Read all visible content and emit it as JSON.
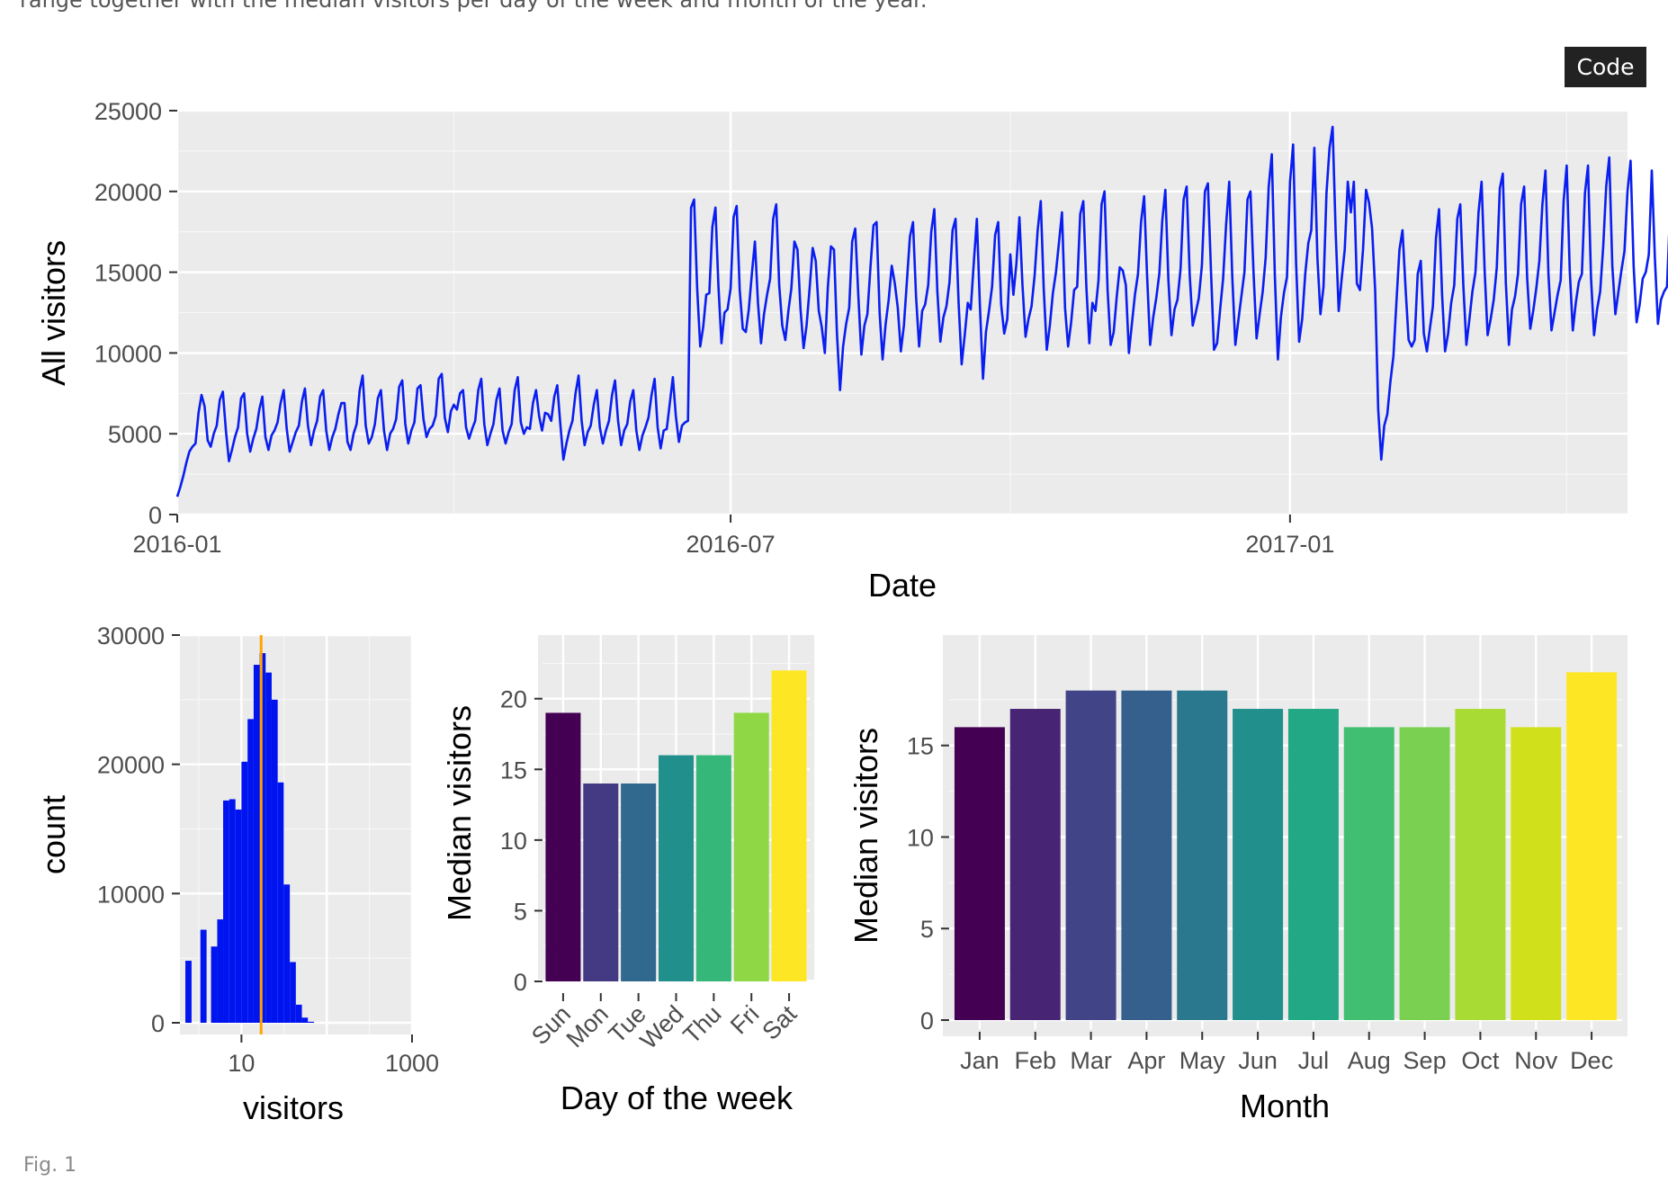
{
  "page": {
    "caption": "range together with the median visitors per day of the week and month of the year.",
    "code_button": "Code",
    "figure_label": "Fig. 1"
  },
  "chart_data": [
    {
      "type": "line",
      "xlabel": "Date",
      "ylabel": "All visitors",
      "x_ticks": [
        "2016-01",
        "2016-07",
        "2017-01"
      ],
      "y_ticks": [
        0,
        5000,
        10000,
        15000,
        20000,
        25000
      ],
      "ylim": [
        0,
        25000
      ],
      "xlim": [
        "2016-01-01",
        "2017-04-22"
      ],
      "color": "#0a1ef0",
      "grid": true,
      "series": [
        {
          "name": "",
          "x_start": "2016-01-01",
          "step": "1 day",
          "values": [
            1100,
            1700,
            2400,
            3200,
            3900,
            4200,
            4400,
            6300,
            7400,
            6700,
            4600,
            4200,
            5000,
            5500,
            7100,
            7600,
            5200,
            3300,
            4000,
            4800,
            5400,
            7200,
            7500,
            5000,
            3900,
            4700,
            5300,
            6500,
            7300,
            4800,
            4000,
            4900,
            5200,
            5700,
            6900,
            7700,
            5300,
            3900,
            4500,
            5100,
            5500,
            7000,
            7800,
            5500,
            4300,
            5200,
            5800,
            7300,
            7700,
            5200,
            4000,
            4800,
            5300,
            6200,
            6900,
            6900,
            4500,
            4000,
            5000,
            5600,
            7700,
            8600,
            5500,
            4400,
            4800,
            5600,
            7200,
            7700,
            5200,
            4000,
            5000,
            5300,
            5900,
            7900,
            8300,
            5600,
            4400,
            5200,
            5700,
            7800,
            8000,
            5900,
            4800,
            5300,
            5500,
            6100,
            8400,
            8700,
            6000,
            5100,
            6400,
            6800,
            6500,
            7500,
            7700,
            5400,
            4700,
            5300,
            5800,
            7700,
            8400,
            5600,
            4300,
            5000,
            5600,
            7100,
            7800,
            5200,
            4400,
            5100,
            5600,
            7700,
            8500,
            5700,
            5000,
            5400,
            5300,
            6900,
            7700,
            6100,
            5200,
            6300,
            6200,
            5800,
            7300,
            8000,
            5600,
            3400,
            4400,
            5200,
            5800,
            7500,
            8600,
            5800,
            4300,
            5100,
            5500,
            6800,
            7700,
            5400,
            4400,
            5200,
            5800,
            7400,
            8300,
            5800,
            4300,
            5200,
            5600,
            7000,
            7700,
            5200,
            4000,
            4900,
            5400,
            6000,
            7400,
            8400,
            5400,
            4100,
            5200,
            5300,
            6900,
            8500,
            6100,
            4500,
            5500,
            5700,
            5800,
            19000,
            19500,
            14000,
            10400,
            11600,
            13600,
            13700,
            17800,
            19000,
            14200,
            10600,
            12500,
            12700,
            14000,
            18400,
            19100,
            13900,
            11500,
            11300,
            12700,
            14900,
            16900,
            13100,
            10600,
            12400,
            13600,
            14600,
            18300,
            19200,
            14200,
            11700,
            10800,
            12600,
            14000,
            16900,
            16400,
            12700,
            10300,
            11700,
            14000,
            16500,
            15700,
            12600,
            11600,
            10000,
            14100,
            16600,
            16400,
            11200,
            7700,
            10400,
            11800,
            12800,
            16900,
            17700,
            13600,
            9900,
            11700,
            12400,
            15300,
            17900,
            18100,
            12500,
            9600,
            11800,
            13300,
            15400,
            14300,
            12800,
            10100,
            11700,
            14500,
            17200,
            18100,
            13500,
            10400,
            12600,
            13000,
            14200,
            17500,
            18900,
            13800,
            10700,
            12200,
            12900,
            14400,
            17600,
            18300,
            13100,
            9300,
            11100,
            13100,
            12700,
            15600,
            18300,
            12900,
            8400,
            11300,
            12600,
            14100,
            17300,
            18100,
            13000,
            11200,
            12100,
            16100,
            13600,
            15500,
            18400,
            14200,
            11000,
            12100,
            12900,
            14800,
            17600,
            19400,
            14000,
            10200,
            11700,
            13700,
            15000,
            16800,
            18700,
            12800,
            10400,
            11900,
            13900,
            14100,
            18600,
            19400,
            14100,
            10600,
            13100,
            12600,
            14500,
            19200,
            20000,
            13900,
            10500,
            11300,
            13500,
            15300,
            15100,
            14200,
            10000,
            11800,
            13600,
            14900,
            18100,
            19700,
            14800,
            10500,
            12200,
            13400,
            14900,
            18200,
            20100,
            14500,
            11100,
            12700,
            13300,
            15200,
            19500,
            20300,
            14800,
            11700,
            12500,
            13400,
            15400,
            20000,
            20500,
            15100,
            10200,
            10600,
            12700,
            14600,
            18000,
            20600,
            14700,
            10500,
            12000,
            13500,
            15000,
            19500,
            20000,
            15000,
            10900,
            12400,
            13800,
            15900,
            20300,
            22300,
            14800,
            9600,
            12200,
            13700,
            14700,
            20600,
            22900,
            15600,
            10700,
            12100,
            14900,
            16800,
            17600,
            22700,
            15900,
            12400,
            14100,
            19900,
            22700,
            24000,
            17500,
            12600,
            14600,
            16400,
            20600,
            18700,
            20600,
            14300,
            13900,
            16400,
            20100,
            19300,
            17700,
            13900,
            6500,
            3400,
            5500,
            6200,
            8200,
            9800,
            13200,
            16400,
            17600,
            14000,
            10800,
            10400,
            10800,
            14900,
            15700,
            11200,
            10100,
            11500,
            12900,
            17100,
            18900,
            13600,
            10100,
            11200,
            13100,
            14200,
            18300,
            19200,
            14200,
            10500,
            12100,
            13800,
            15000,
            18700,
            20600,
            15100,
            11100,
            12100,
            13300,
            15300,
            20200,
            21100,
            14300,
            10500,
            12700,
            13500,
            14900,
            19200,
            20300,
            14600,
            11500,
            12600,
            14000,
            15700,
            19200,
            21300,
            14900,
            11400,
            12500,
            13600,
            14500,
            19400,
            21600,
            15100,
            11400,
            13100,
            14400,
            14900,
            19900,
            21600,
            14700,
            11100,
            12700,
            13800,
            16600,
            20300,
            22100,
            15400,
            12400,
            13800,
            15100,
            16300,
            20000,
            21900,
            15400,
            11900,
            13000,
            14600,
            15000,
            16100,
            21300,
            15900,
            11800,
            13300,
            13800,
            14100,
            18800,
            22200,
            16100,
            11700,
            12800,
            14100,
            15600,
            19400,
            21700,
            15800,
            11900,
            13700,
            14400,
            16500,
            20200,
            23000,
            16200,
            11800,
            12900,
            14500,
            14100,
            20500,
            22400,
            17300,
            12100,
            11200,
            12400,
            13500,
            16300,
            18300,
            19500,
            14600,
            10600,
            11400,
            13100,
            14800,
            20400,
            22000,
            16400,
            9800,
            12600,
            14500,
            14000,
            19600,
            21300
          ]
        }
      ]
    },
    {
      "type": "bar",
      "subtype": "histogram",
      "xlabel": "visitors",
      "ylabel": "count",
      "x_scale": "log10",
      "x_ticks": [
        10,
        1000
      ],
      "y_ticks": [
        0,
        10000,
        20000,
        30000
      ],
      "ylim": [
        0,
        30000
      ],
      "xlim": [
        1.9,
        1000
      ],
      "color": "#0014f0",
      "median_line": {
        "value": 17,
        "color": "#ffa500"
      },
      "bins": [
        {
          "from": 2.2,
          "to": 2.6,
          "count": 4800
        },
        {
          "from": 3.3,
          "to": 3.9,
          "count": 7200
        },
        {
          "from": 4.4,
          "to": 5.2,
          "count": 5900
        },
        {
          "from": 5.2,
          "to": 6.1,
          "count": 8000
        },
        {
          "from": 6.1,
          "to": 7.2,
          "count": 17200
        },
        {
          "from": 7.2,
          "to": 8.5,
          "count": 17300
        },
        {
          "from": 8.5,
          "to": 10.0,
          "count": 16500
        },
        {
          "from": 10.0,
          "to": 11.8,
          "count": 20200
        },
        {
          "from": 11.8,
          "to": 13.9,
          "count": 23500
        },
        {
          "from": 13.9,
          "to": 16.3,
          "count": 27700
        },
        {
          "from": 16.3,
          "to": 19.2,
          "count": 28600
        },
        {
          "from": 19.2,
          "to": 22.6,
          "count": 27100
        },
        {
          "from": 22.6,
          "to": 26.6,
          "count": 25000
        },
        {
          "from": 26.6,
          "to": 31.3,
          "count": 18600
        },
        {
          "from": 31.3,
          "to": 36.9,
          "count": 10700
        },
        {
          "from": 36.9,
          "to": 43.4,
          "count": 4700
        },
        {
          "from": 43.4,
          "to": 51.1,
          "count": 1400
        },
        {
          "from": 51.1,
          "to": 60.1,
          "count": 400
        },
        {
          "from": 60.1,
          "to": 70.8,
          "count": 80
        }
      ]
    },
    {
      "type": "bar",
      "xlabel": "Day of the week",
      "ylabel": "Median visitors",
      "categories": [
        "Sun",
        "Mon",
        "Tue",
        "Wed",
        "Thu",
        "Fri",
        "Sat"
      ],
      "values": [
        19,
        14,
        14,
        16,
        16,
        19,
        22
      ],
      "colors": [
        "#440154",
        "#443a83",
        "#31688e",
        "#21908d",
        "#35b779",
        "#8fd744",
        "#fde725"
      ],
      "y_ticks": [
        0,
        5,
        10,
        15,
        20
      ],
      "ylim": [
        0,
        23.1
      ]
    },
    {
      "type": "bar",
      "xlabel": "Month",
      "ylabel": "Median visitors",
      "categories": [
        "Jan",
        "Feb",
        "Mar",
        "Apr",
        "May",
        "Jun",
        "Jul",
        "Aug",
        "Sep",
        "Oct",
        "Nov",
        "Dec"
      ],
      "values": [
        16,
        17,
        18,
        18,
        18,
        17,
        17,
        16,
        16,
        17,
        16,
        19
      ],
      "colors": [
        "#440154",
        "#482475",
        "#414487",
        "#355f8d",
        "#2a788e",
        "#21908d",
        "#22a884",
        "#42be71",
        "#7ad151",
        "#a8db34",
        "#d0e11c",
        "#fde725"
      ],
      "y_ticks": [
        0,
        5,
        10,
        15
      ],
      "ylim": [
        0,
        19.95
      ]
    }
  ]
}
